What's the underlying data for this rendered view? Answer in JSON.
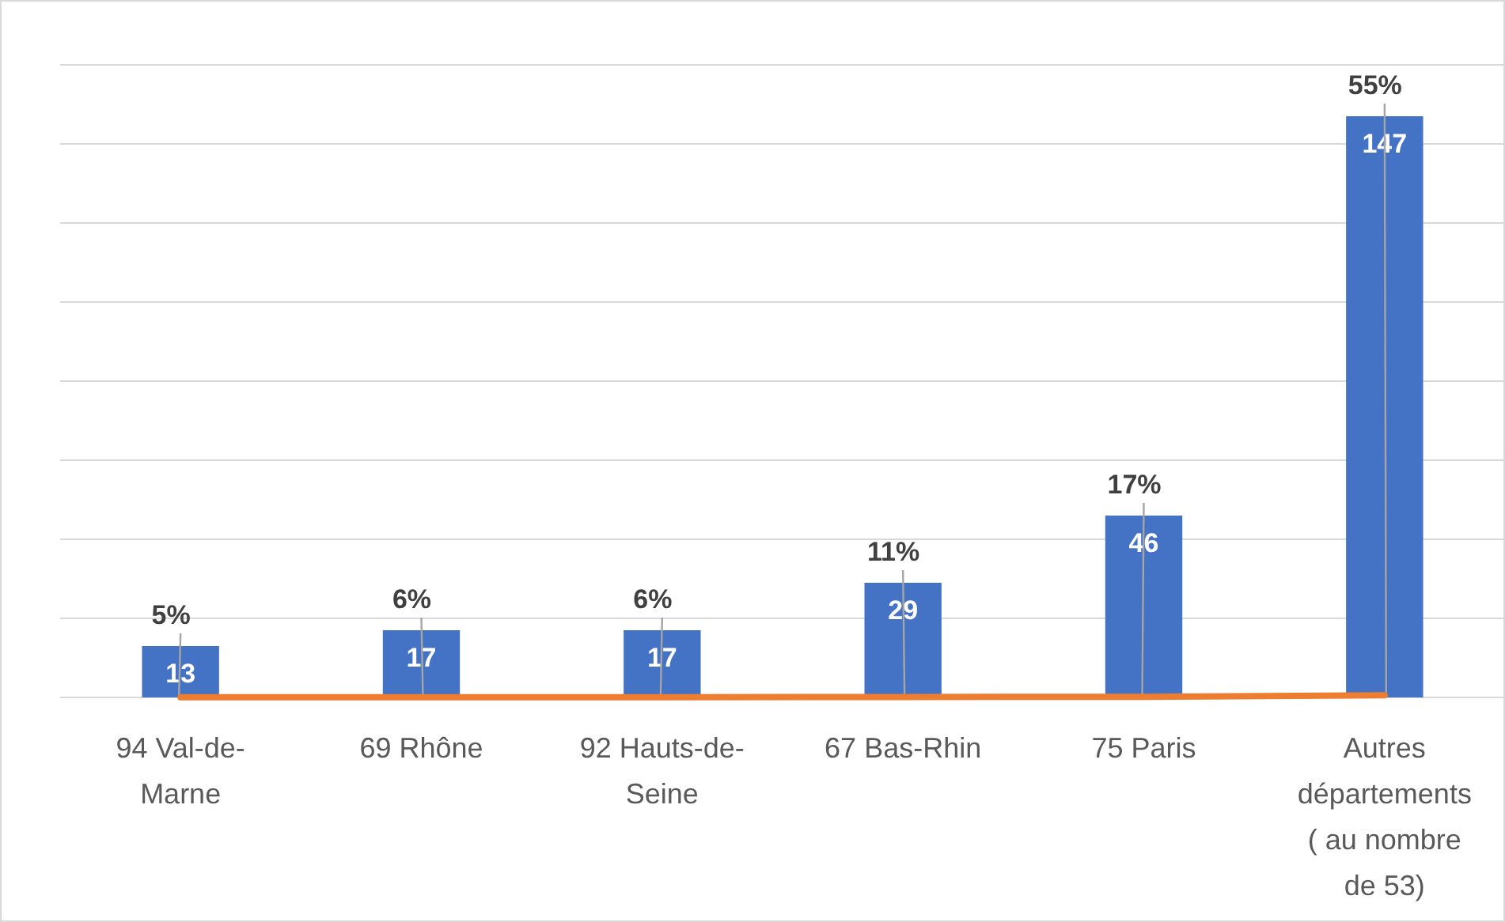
{
  "chart_data": {
    "type": "bar",
    "categories": [
      "94 Val-de-Marne",
      "69 Rhône",
      "92 Hauts-de-Seine",
      "67 Bas-Rhin",
      "75 Paris",
      "Autres départements ( au nombre de 53)"
    ],
    "series": [
      {
        "color": "#4472c4",
        "values": [
          13,
          17,
          17,
          29,
          46,
          147
        ],
        "value_labels": [
          "13",
          "17",
          "17",
          "29",
          "46",
          "147"
        ]
      },
      {
        "type": "line",
        "color": "#ed7d31",
        "values": [
          0.05,
          0.06,
          0.06,
          0.11,
          0.17,
          0.55
        ],
        "value_labels": [
          "5%",
          "6%",
          "6%",
          "11%",
          "17%",
          "55%"
        ]
      }
    ],
    "ylim": [
      0,
      160
    ],
    "yticks": [
      {
        "value": 0,
        "label": null
      },
      {
        "value": 20,
        "label": null
      },
      {
        "value": 40,
        "label": null
      },
      {
        "value": 60,
        "label": null
      },
      {
        "value": 80,
        "label": null
      },
      {
        "value": 100,
        "label": null
      },
      {
        "value": 120,
        "label": null
      },
      {
        "value": 140,
        "label": null
      },
      {
        "value": 160,
        "label": null
      }
    ],
    "grid": "y",
    "tick_labels": "x",
    "marker": "none"
  }
}
